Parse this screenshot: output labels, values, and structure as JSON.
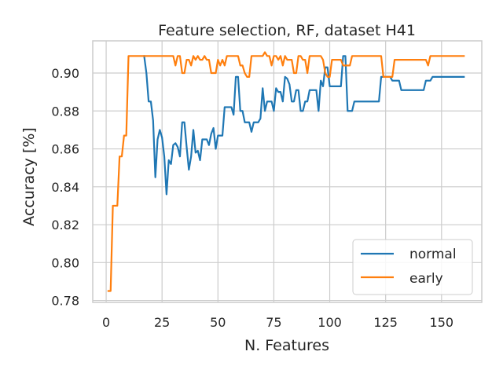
{
  "chart_data": {
    "type": "line",
    "title": "Feature selection, RF, dataset H41",
    "xlabel": "N. Features",
    "ylabel": "Accuracy [%]",
    "xlim": [
      -6,
      168
    ],
    "ylim": [
      0.779,
      0.917
    ],
    "xticks": [
      0,
      25,
      50,
      75,
      100,
      125,
      150
    ],
    "xtick_labels": [
      "0",
      "25",
      "50",
      "75",
      "100",
      "125",
      "150"
    ],
    "yticks": [
      0.78,
      0.8,
      0.82,
      0.84,
      0.86,
      0.88,
      0.9
    ],
    "ytick_labels": [
      "0.78",
      "0.80",
      "0.82",
      "0.84",
      "0.86",
      "0.88",
      "0.90"
    ],
    "grid": true,
    "legend_position": "lower-right",
    "series": [
      {
        "name": "normal",
        "color": "#1f77b4",
        "points": [
          [
            17,
            0.909
          ],
          [
            18,
            0.9
          ],
          [
            19,
            0.885
          ],
          [
            20,
            0.885
          ],
          [
            21,
            0.875
          ],
          [
            22,
            0.845
          ],
          [
            23,
            0.865
          ],
          [
            24,
            0.87
          ],
          [
            25,
            0.866
          ],
          [
            26,
            0.856
          ],
          [
            27,
            0.836
          ],
          [
            28,
            0.854
          ],
          [
            29,
            0.852
          ],
          [
            30,
            0.862
          ],
          [
            31,
            0.863
          ],
          [
            32,
            0.861
          ],
          [
            33,
            0.856
          ],
          [
            34,
            0.874
          ],
          [
            35,
            0.874
          ],
          [
            36,
            0.861
          ],
          [
            37,
            0.849
          ],
          [
            38,
            0.856
          ],
          [
            39,
            0.87
          ],
          [
            40,
            0.858
          ],
          [
            41,
            0.859
          ],
          [
            42,
            0.854
          ],
          [
            43,
            0.865
          ],
          [
            44,
            0.865
          ],
          [
            45,
            0.865
          ],
          [
            46,
            0.862
          ],
          [
            47,
            0.868
          ],
          [
            48,
            0.871
          ],
          [
            49,
            0.86
          ],
          [
            50,
            0.867
          ],
          [
            51,
            0.867
          ],
          [
            52,
            0.867
          ],
          [
            53,
            0.882
          ],
          [
            54,
            0.882
          ],
          [
            55,
            0.882
          ],
          [
            56,
            0.882
          ],
          [
            57,
            0.878
          ],
          [
            58,
            0.898
          ],
          [
            59,
            0.898
          ],
          [
            60,
            0.88
          ],
          [
            61,
            0.88
          ],
          [
            62,
            0.874
          ],
          [
            63,
            0.874
          ],
          [
            64,
            0.874
          ],
          [
            65,
            0.869
          ],
          [
            66,
            0.874
          ],
          [
            67,
            0.874
          ],
          [
            68,
            0.874
          ],
          [
            69,
            0.876
          ],
          [
            70,
            0.892
          ],
          [
            71,
            0.88
          ],
          [
            72,
            0.885
          ],
          [
            73,
            0.885
          ],
          [
            74,
            0.885
          ],
          [
            75,
            0.88
          ],
          [
            76,
            0.892
          ],
          [
            77,
            0.89
          ],
          [
            78,
            0.89
          ],
          [
            79,
            0.885
          ],
          [
            80,
            0.898
          ],
          [
            81,
            0.897
          ],
          [
            82,
            0.894
          ],
          [
            83,
            0.885
          ],
          [
            84,
            0.885
          ],
          [
            85,
            0.891
          ],
          [
            86,
            0.891
          ],
          [
            87,
            0.88
          ],
          [
            88,
            0.88
          ],
          [
            89,
            0.885
          ],
          [
            90,
            0.885
          ],
          [
            91,
            0.891
          ],
          [
            92,
            0.891
          ],
          [
            93,
            0.891
          ],
          [
            94,
            0.891
          ],
          [
            95,
            0.88
          ],
          [
            96,
            0.896
          ],
          [
            97,
            0.893
          ],
          [
            98,
            0.903
          ],
          [
            99,
            0.903
          ],
          [
            100,
            0.893
          ],
          [
            101,
            0.893
          ],
          [
            102,
            0.893
          ],
          [
            103,
            0.893
          ],
          [
            104,
            0.893
          ],
          [
            105,
            0.893
          ],
          [
            106,
            0.909
          ],
          [
            107,
            0.909
          ],
          [
            108,
            0.88
          ],
          [
            109,
            0.88
          ],
          [
            110,
            0.88
          ],
          [
            111,
            0.885
          ],
          [
            112,
            0.885
          ],
          [
            113,
            0.885
          ],
          [
            114,
            0.885
          ],
          [
            115,
            0.885
          ],
          [
            116,
            0.885
          ],
          [
            117,
            0.885
          ],
          [
            118,
            0.885
          ],
          [
            119,
            0.885
          ],
          [
            120,
            0.885
          ],
          [
            121,
            0.885
          ],
          [
            122,
            0.885
          ],
          [
            123,
            0.898
          ],
          [
            124,
            0.898
          ],
          [
            125,
            0.898
          ],
          [
            126,
            0.898
          ],
          [
            127,
            0.898
          ],
          [
            128,
            0.896
          ],
          [
            129,
            0.896
          ],
          [
            130,
            0.896
          ],
          [
            131,
            0.896
          ],
          [
            132,
            0.891
          ],
          [
            133,
            0.891
          ],
          [
            134,
            0.891
          ],
          [
            135,
            0.891
          ],
          [
            136,
            0.891
          ],
          [
            137,
            0.891
          ],
          [
            138,
            0.891
          ],
          [
            139,
            0.891
          ],
          [
            140,
            0.891
          ],
          [
            141,
            0.891
          ],
          [
            142,
            0.891
          ],
          [
            143,
            0.896
          ],
          [
            144,
            0.896
          ],
          [
            145,
            0.896
          ],
          [
            146,
            0.898
          ],
          [
            147,
            0.898
          ],
          [
            148,
            0.898
          ],
          [
            150,
            0.898
          ],
          [
            155,
            0.898
          ],
          [
            160,
            0.898
          ]
        ]
      },
      {
        "name": "early",
        "color": "#ff7f0e",
        "points": [
          [
            1,
            0.785
          ],
          [
            2,
            0.785
          ],
          [
            3,
            0.83
          ],
          [
            4,
            0.83
          ],
          [
            5,
            0.83
          ],
          [
            6,
            0.856
          ],
          [
            7,
            0.856
          ],
          [
            8,
            0.867
          ],
          [
            9,
            0.867
          ],
          [
            10,
            0.909
          ],
          [
            11,
            0.909
          ],
          [
            12,
            0.909
          ],
          [
            15,
            0.909
          ],
          [
            20,
            0.909
          ],
          [
            25,
            0.909
          ],
          [
            30,
            0.909
          ],
          [
            31,
            0.904
          ],
          [
            32,
            0.909
          ],
          [
            33,
            0.909
          ],
          [
            34,
            0.9
          ],
          [
            35,
            0.9
          ],
          [
            36,
            0.907
          ],
          [
            37,
            0.907
          ],
          [
            38,
            0.904
          ],
          [
            39,
            0.909
          ],
          [
            40,
            0.907
          ],
          [
            41,
            0.909
          ],
          [
            42,
            0.907
          ],
          [
            43,
            0.907
          ],
          [
            44,
            0.909
          ],
          [
            45,
            0.907
          ],
          [
            46,
            0.907
          ],
          [
            47,
            0.9
          ],
          [
            48,
            0.9
          ],
          [
            49,
            0.9
          ],
          [
            50,
            0.907
          ],
          [
            51,
            0.904
          ],
          [
            52,
            0.907
          ],
          [
            53,
            0.904
          ],
          [
            54,
            0.909
          ],
          [
            55,
            0.909
          ],
          [
            56,
            0.909
          ],
          [
            57,
            0.909
          ],
          [
            58,
            0.909
          ],
          [
            59,
            0.909
          ],
          [
            60,
            0.904
          ],
          [
            61,
            0.904
          ],
          [
            62,
            0.9
          ],
          [
            63,
            0.898
          ],
          [
            64,
            0.898
          ],
          [
            65,
            0.909
          ],
          [
            66,
            0.909
          ],
          [
            67,
            0.909
          ],
          [
            68,
            0.909
          ],
          [
            69,
            0.909
          ],
          [
            70,
            0.909
          ],
          [
            71,
            0.911
          ],
          [
            72,
            0.909
          ],
          [
            73,
            0.909
          ],
          [
            74,
            0.904
          ],
          [
            75,
            0.909
          ],
          [
            76,
            0.909
          ],
          [
            77,
            0.907
          ],
          [
            78,
            0.909
          ],
          [
            79,
            0.904
          ],
          [
            80,
            0.909
          ],
          [
            81,
            0.907
          ],
          [
            82,
            0.907
          ],
          [
            83,
            0.907
          ],
          [
            84,
            0.9
          ],
          [
            85,
            0.9
          ],
          [
            86,
            0.909
          ],
          [
            87,
            0.909
          ],
          [
            88,
            0.907
          ],
          [
            89,
            0.907
          ],
          [
            90,
            0.9
          ],
          [
            91,
            0.909
          ],
          [
            92,
            0.909
          ],
          [
            93,
            0.909
          ],
          [
            94,
            0.909
          ],
          [
            95,
            0.909
          ],
          [
            96,
            0.909
          ],
          [
            97,
            0.907
          ],
          [
            98,
            0.9
          ],
          [
            99,
            0.898
          ],
          [
            100,
            0.898
          ],
          [
            101,
            0.907
          ],
          [
            102,
            0.907
          ],
          [
            103,
            0.907
          ],
          [
            104,
            0.907
          ],
          [
            105,
            0.907
          ],
          [
            106,
            0.904
          ],
          [
            107,
            0.904
          ],
          [
            108,
            0.904
          ],
          [
            109,
            0.904
          ],
          [
            110,
            0.909
          ],
          [
            115,
            0.909
          ],
          [
            120,
            0.909
          ],
          [
            123,
            0.909
          ],
          [
            124,
            0.898
          ],
          [
            125,
            0.898
          ],
          [
            126,
            0.898
          ],
          [
            127,
            0.898
          ],
          [
            128,
            0.898
          ],
          [
            129,
            0.907
          ],
          [
            130,
            0.907
          ],
          [
            135,
            0.907
          ],
          [
            140,
            0.907
          ],
          [
            143,
            0.907
          ],
          [
            144,
            0.904
          ],
          [
            145,
            0.909
          ],
          [
            150,
            0.909
          ],
          [
            155,
            0.909
          ],
          [
            160,
            0.909
          ]
        ]
      }
    ]
  }
}
